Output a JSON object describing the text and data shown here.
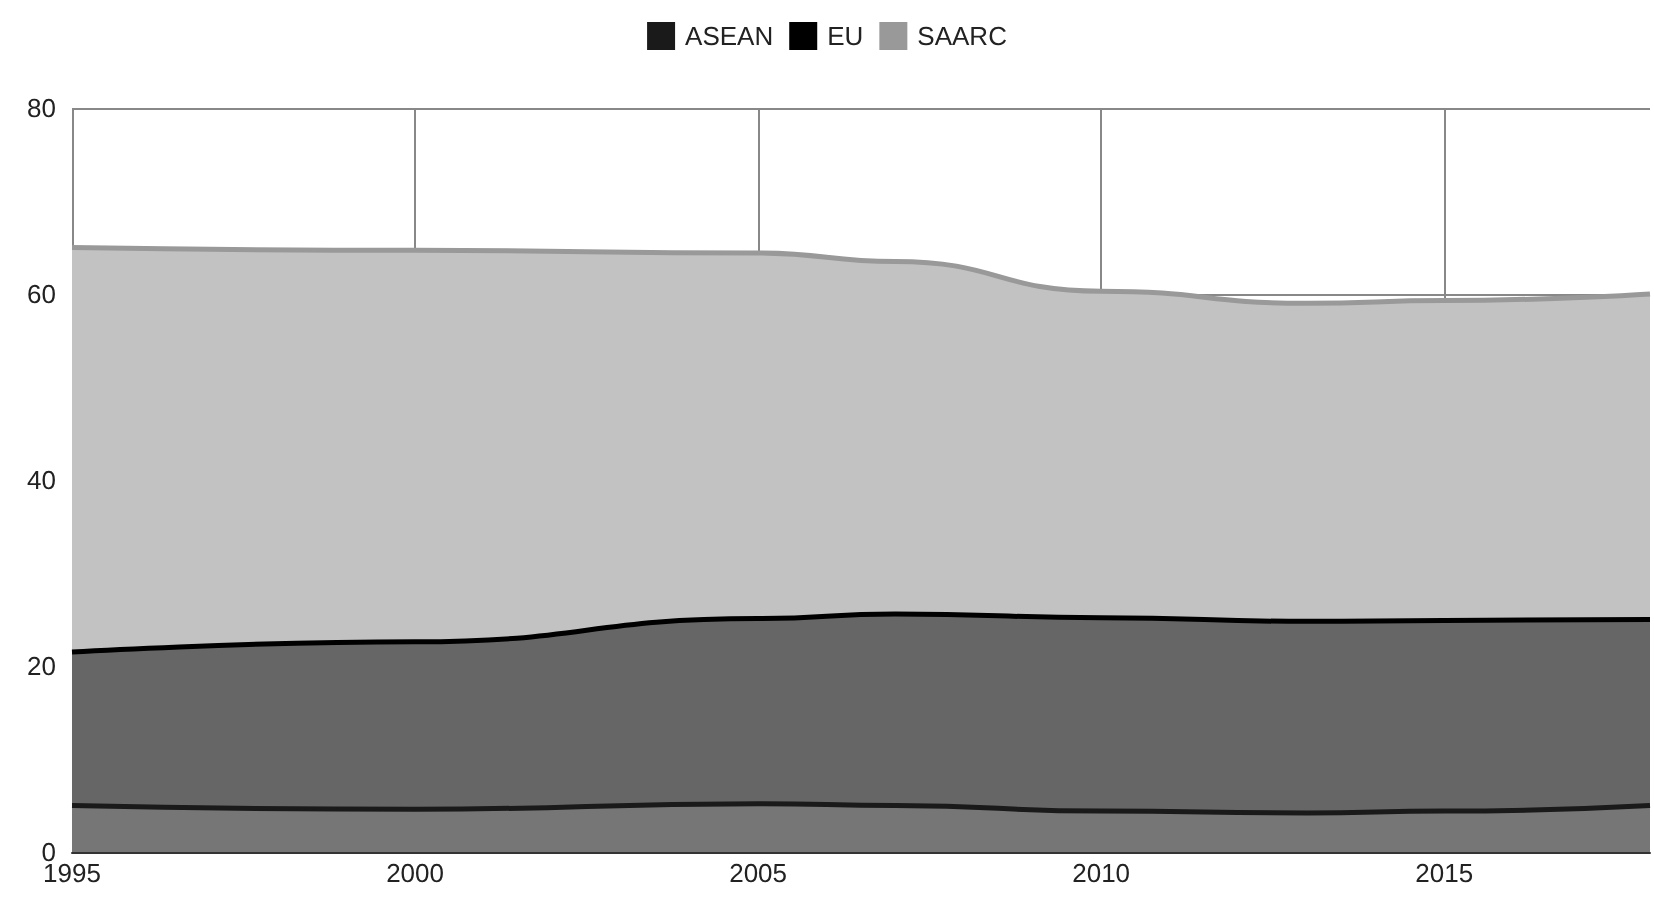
{
  "chart_data": {
    "type": "area",
    "stacked": true,
    "x": [
      1995,
      2000,
      2005,
      2007,
      2010,
      2013,
      2015,
      2018
    ],
    "series": [
      {
        "name": "ASEAN",
        "color": "#1a1a1a",
        "values": [
          5,
          4.6,
          5.2,
          5,
          4.4,
          4.2,
          4.4,
          5
        ]
      },
      {
        "name": "EU",
        "color": "#000000",
        "values": [
          16.5,
          18,
          19.9,
          20.6,
          20.8,
          20.6,
          20.5,
          20
        ]
      },
      {
        "name": "SAARC",
        "color": "#999999",
        "values": [
          43.5,
          42.1,
          39.3,
          37.9,
          35.1,
          34.2,
          34.4,
          35
        ]
      }
    ],
    "xlim": [
      1995,
      2018
    ],
    "xticks": [
      1995,
      2000,
      2005,
      2010,
      2015
    ],
    "ylim": [
      0,
      80
    ],
    "yticks": [
      0,
      20,
      40,
      60,
      80
    ],
    "grid": true,
    "legend": "top"
  }
}
